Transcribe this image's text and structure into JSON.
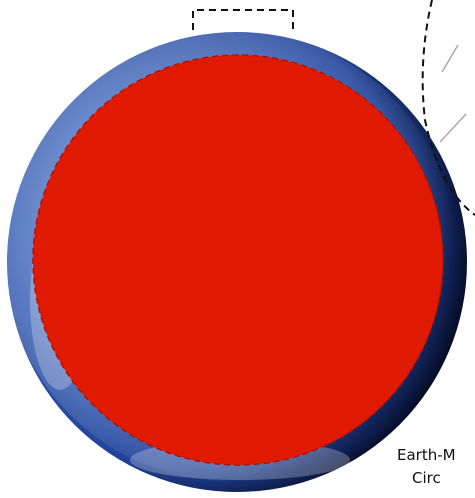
{
  "labels": {
    "line1": "Earth-M",
    "line2": "Circ"
  }
}
